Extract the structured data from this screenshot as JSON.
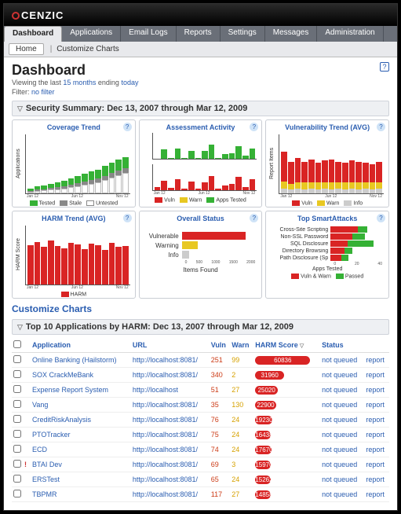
{
  "brand": "CENZIC",
  "nav": {
    "tabs": [
      "Dashboard",
      "Applications",
      "Email Logs",
      "Reports",
      "Settings",
      "Messages",
      "Administration"
    ],
    "active": 0
  },
  "subnav": {
    "home": "Home",
    "crumb": "Customize Charts"
  },
  "page": {
    "title": "Dashboard",
    "viewing_pre": "Viewing the last ",
    "viewing_months": "15 months",
    "viewing_mid": " ending ",
    "viewing_end": "today",
    "filter_label": "Filter: ",
    "filter_value": "no filter"
  },
  "sec_summary_title": "Security Summary: Dec 13, 2007 through Mar 12, 2009",
  "cards": {
    "coverage": {
      "title": "Coverage Trend",
      "ylabel": "Applications",
      "bars": [
        {
          "tested": 4,
          "stale": 1,
          "untested": 3
        },
        {
          "tested": 5,
          "stale": 2,
          "untested": 4
        },
        {
          "tested": 6,
          "stale": 2,
          "untested": 5
        },
        {
          "tested": 7,
          "stale": 3,
          "untested": 6
        },
        {
          "tested": 8,
          "stale": 3,
          "untested": 7
        },
        {
          "tested": 9,
          "stale": 4,
          "untested": 8
        },
        {
          "tested": 10,
          "stale": 4,
          "untested": 10
        },
        {
          "tested": 12,
          "stale": 5,
          "untested": 12
        },
        {
          "tested": 13,
          "stale": 5,
          "untested": 14
        },
        {
          "tested": 14,
          "stale": 6,
          "untested": 16
        },
        {
          "tested": 15,
          "stale": 6,
          "untested": 18
        },
        {
          "tested": 16,
          "stale": 7,
          "untested": 22
        },
        {
          "tested": 17,
          "stale": 7,
          "untested": 26
        },
        {
          "tested": 18,
          "stale": 7,
          "untested": 30
        },
        {
          "tested": 19,
          "stale": 7,
          "untested": 34
        }
      ],
      "max": 80,
      "legend": [
        {
          "label": "Tested",
          "color": "#35b135"
        },
        {
          "label": "Stale",
          "color": "#888888"
        },
        {
          "label": "Untested",
          "color": "#ffffff"
        }
      ],
      "xticks": [
        "Jan 12",
        "Jun 12",
        "Nov 12"
      ]
    },
    "activity": {
      "title": "Assessment Activity",
      "ylabel": "",
      "top_bars": [
        0,
        8,
        1,
        9,
        1,
        7,
        1,
        7,
        12,
        1,
        4,
        5,
        11,
        3,
        9
      ],
      "top_max": 20,
      "bot_bars": [
        200,
        600,
        150,
        700,
        100,
        550,
        120,
        500,
        900,
        90,
        300,
        380,
        850,
        220,
        680
      ],
      "bot_max": 1500,
      "legend": [
        {
          "label": "Vuln",
          "color": "#d92424"
        },
        {
          "label": "Warn",
          "color": "#e8c822"
        },
        {
          "label": "Apps Tested",
          "color": "#35b135"
        }
      ],
      "xticks": [
        "Jan 12",
        "Jun 12",
        "Nov 12"
      ]
    },
    "vulntrend": {
      "title": "Vulnerability Trend (AVG)",
      "ylabel": "Report Items",
      "bars": [
        {
          "v": 24,
          "w": 6,
          "i": 4
        },
        {
          "v": 18,
          "w": 5,
          "i": 3
        },
        {
          "v": 20,
          "w": 5,
          "i": 4
        },
        {
          "v": 17,
          "w": 6,
          "i": 3
        },
        {
          "v": 19,
          "w": 5,
          "i": 4
        },
        {
          "v": 16,
          "w": 6,
          "i": 3
        },
        {
          "v": 18,
          "w": 5,
          "i": 4
        },
        {
          "v": 19,
          "w": 6,
          "i": 3
        },
        {
          "v": 17,
          "w": 5,
          "i": 4
        },
        {
          "v": 16,
          "w": 6,
          "i": 3
        },
        {
          "v": 18,
          "w": 5,
          "i": 4
        },
        {
          "v": 17,
          "w": 6,
          "i": 3
        },
        {
          "v": 16,
          "w": 5,
          "i": 4
        },
        {
          "v": 15,
          "w": 6,
          "i": 3
        },
        {
          "v": 17,
          "w": 5,
          "i": 4
        }
      ],
      "max": 40,
      "legend": [
        {
          "label": "Vuln",
          "color": "#d92424"
        },
        {
          "label": "Warn",
          "color": "#e8c822"
        },
        {
          "label": "Info",
          "color": "#cccccc"
        }
      ],
      "xticks": [
        "Jan 12",
        "Jun 12",
        "Nov 12"
      ]
    },
    "harm": {
      "title": "HARM Trend (AVG)",
      "ylabel": "HARM Score",
      "bars": [
        4800,
        5200,
        4600,
        5400,
        4700,
        4500,
        5100,
        4900,
        4400,
        5000,
        4800,
        4300,
        5100,
        4600,
        4700
      ],
      "max": 6000,
      "legend": [
        {
          "label": "HARM",
          "color": "#d92424"
        }
      ],
      "xticks": [
        "Jan 12",
        "Jun 12",
        "Nov 12"
      ]
    },
    "overall": {
      "title": "Overall Status",
      "rows": [
        {
          "label": "Vulnerable",
          "value": 1800,
          "color": "#d92424"
        },
        {
          "label": "Warning",
          "value": 450,
          "color": "#e8c822"
        },
        {
          "label": "Info",
          "value": 200,
          "color": "#cccccc"
        }
      ],
      "max": 2000,
      "xlabel": "Items Found",
      "xticks": [
        "0",
        "500",
        "1000",
        "1500",
        "2000"
      ]
    },
    "smart": {
      "title": "Top SmartAttacks",
      "rows": [
        {
          "label": "Cross-Site Scripting",
          "r": 35,
          "g": 12
        },
        {
          "label": "Non-SSL Password",
          "r": 28,
          "g": 16
        },
        {
          "label": "SQL Disclosure",
          "r": 22,
          "g": 33
        },
        {
          "label": "Directory Browsing",
          "r": 18,
          "g": 10
        },
        {
          "label": "Path Disclosure (Sp",
          "r": 14,
          "g": 9
        }
      ],
      "max": 60,
      "xlabel": "Apps Tested",
      "xticks": [
        "0",
        "20",
        "40"
      ],
      "legend": [
        {
          "label": "Vuln & Warn",
          "color": "#d92424"
        },
        {
          "label": "Passed",
          "color": "#35b135"
        }
      ]
    }
  },
  "customize_link": "Customize Charts",
  "top10_title": "Top 10 Applications by HARM: Dec 13, 2007 through Mar 12, 2009",
  "table": {
    "cols": [
      "",
      "",
      "Application",
      "URL",
      "Vuln",
      "Warn",
      "HARM Score",
      "Status",
      ""
    ],
    "sort_col": 6,
    "harm_max": 60836,
    "rows": [
      {
        "flag": "",
        "app": "Online Banking (Hailstorm)",
        "url": "http://localhost:8081/",
        "vuln": 251,
        "warn": 99,
        "harm": 60836,
        "status": "not queued",
        "action": "report"
      },
      {
        "flag": "",
        "app": "SOX CrackMeBank",
        "url": "http://localhost:8081/",
        "vuln": 340,
        "warn": 2,
        "harm": 31960,
        "status": "not queued",
        "action": "report"
      },
      {
        "flag": "",
        "app": "Expense Report System",
        "url": "http://localhost",
        "vuln": 51,
        "warn": 27,
        "harm": 25020,
        "status": "not queued",
        "action": "report"
      },
      {
        "flag": "",
        "app": "Vang",
        "url": "http://localhost:8081/",
        "vuln": 35,
        "warn": 130,
        "harm": 22900,
        "status": "not queued",
        "action": "report"
      },
      {
        "flag": "",
        "app": "CreditRiskAnalysis",
        "url": "http://localhost:8081/",
        "vuln": 76,
        "warn": 24,
        "harm": 19230,
        "status": "not queued",
        "action": "report"
      },
      {
        "flag": "",
        "app": "PTOTracker",
        "url": "http://localhost:8081/",
        "vuln": 75,
        "warn": 24,
        "harm": 16438,
        "status": "not queued",
        "action": "report"
      },
      {
        "flag": "",
        "app": "ECD",
        "url": "http://localhost:8081/",
        "vuln": 74,
        "warn": 24,
        "harm": 17670,
        "status": "not queued",
        "action": "report"
      },
      {
        "flag": "!",
        "app": "BTAI Dev",
        "url": "http://localhost:8081/",
        "vuln": 69,
        "warn": 3,
        "harm": 15970,
        "status": "not queued",
        "action": "report"
      },
      {
        "flag": "",
        "app": "ERSTest",
        "url": "http://localhost:8081/",
        "vuln": 65,
        "warn": 24,
        "harm": 15262,
        "status": "not queued",
        "action": "report"
      },
      {
        "flag": "",
        "app": "TBPMR",
        "url": "http://localhost:8081/",
        "vuln": 117,
        "warn": 27,
        "harm": 14858,
        "status": "not queued",
        "action": "report"
      }
    ]
  }
}
